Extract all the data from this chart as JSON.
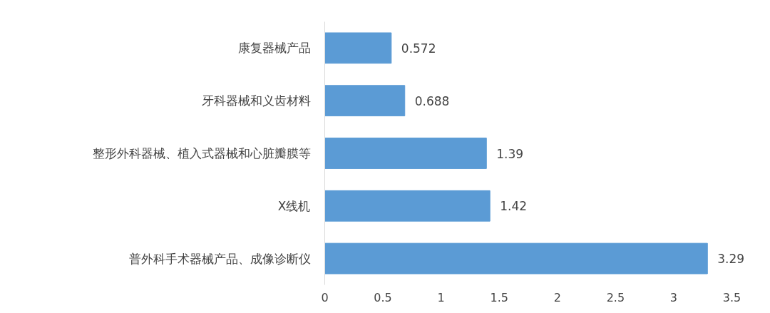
{
  "chart_data": {
    "type": "bar",
    "orientation": "horizontal",
    "categories": [
      "康复器械产品",
      "牙科器械和义齿材料",
      "整形外科器械、植入式器械和心脏瓣膜等",
      "X线机",
      "普外科手术器械产品、成像诊断仪"
    ],
    "values": [
      0.572,
      0.688,
      1.39,
      1.42,
      3.29
    ],
    "color": "#5b9bd5",
    "xlim": [
      0,
      3.5
    ],
    "xticks": [
      0,
      0.5,
      1,
      1.5,
      2,
      2.5,
      3,
      3.5
    ],
    "grid": false,
    "data_labels": true
  }
}
